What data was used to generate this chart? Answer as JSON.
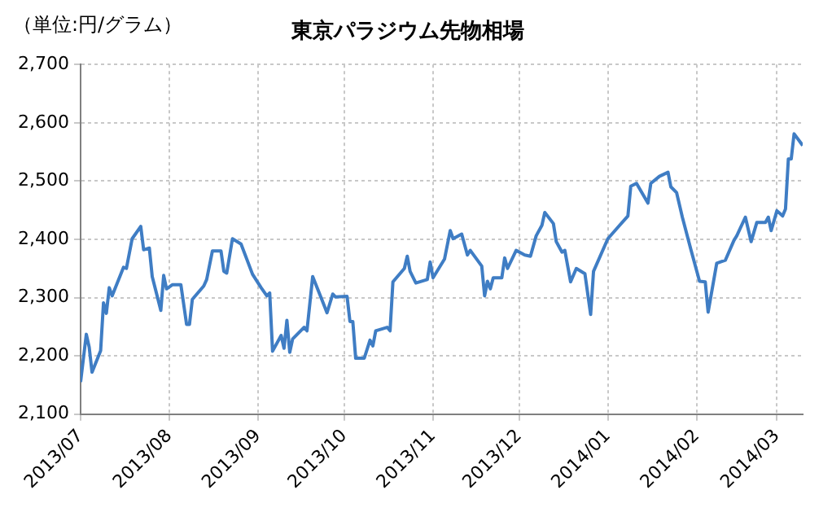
{
  "chart_data": {
    "type": "line",
    "title": "東京パラジウム先物相場",
    "ylabel": "（単位:円/グラム）",
    "x": [
      "2013-07-01",
      "2013-07-03",
      "2013-07-04",
      "2013-07-05",
      "2013-07-08",
      "2013-07-09",
      "2013-07-10",
      "2013-07-11",
      "2013-07-12",
      "2013-07-16",
      "2013-07-17",
      "2013-07-19",
      "2013-07-22",
      "2013-07-23",
      "2013-07-25",
      "2013-07-26",
      "2013-07-29",
      "2013-07-30",
      "2013-07-31",
      "2013-08-02",
      "2013-08-05",
      "2013-08-07",
      "2013-08-08",
      "2013-08-09",
      "2013-08-13",
      "2013-08-14",
      "2013-08-16",
      "2013-08-19",
      "2013-08-20",
      "2013-08-21",
      "2013-08-23",
      "2013-08-26",
      "2013-08-30",
      "2013-09-02",
      "2013-09-04",
      "2013-09-05",
      "2013-09-06",
      "2013-09-09",
      "2013-09-10",
      "2013-09-11",
      "2013-09-12",
      "2013-09-13",
      "2013-09-17",
      "2013-09-18",
      "2013-09-20",
      "2013-09-23",
      "2013-09-25",
      "2013-09-27",
      "2013-09-28",
      "2013-10-02",
      "2013-10-03",
      "2013-10-04",
      "2013-10-05",
      "2013-10-08",
      "2013-10-10",
      "2013-10-11",
      "2013-10-12",
      "2013-10-16",
      "2013-10-17",
      "2013-10-18",
      "2013-10-22",
      "2013-10-23",
      "2013-10-24",
      "2013-10-26",
      "2013-10-30",
      "2013-10-31",
      "2013-11-01",
      "2013-11-05",
      "2013-11-07",
      "2013-11-08",
      "2013-11-11",
      "2013-11-13",
      "2013-11-14",
      "2013-11-18",
      "2013-11-19",
      "2013-11-20",
      "2013-11-21",
      "2013-11-22",
      "2013-11-25",
      "2013-11-26",
      "2013-11-27",
      "2013-11-30",
      "2013-12-03",
      "2013-12-05",
      "2013-12-07",
      "2013-12-09",
      "2013-12-10",
      "2013-12-13",
      "2013-12-14",
      "2013-12-16",
      "2013-12-17",
      "2013-12-19",
      "2013-12-21",
      "2013-12-24",
      "2013-12-26",
      "2013-12-27",
      "2014-01-01",
      "2014-01-08",
      "2014-01-09",
      "2014-01-11",
      "2014-01-15",
      "2014-01-16",
      "2014-01-19",
      "2014-01-22",
      "2014-01-23",
      "2014-01-25",
      "2014-01-27",
      "2014-01-30",
      "2014-02-02",
      "2014-02-04",
      "2014-02-05",
      "2014-02-08",
      "2014-02-11",
      "2014-02-14",
      "2014-02-15",
      "2014-02-18",
      "2014-02-20",
      "2014-02-22",
      "2014-02-25",
      "2014-02-26",
      "2014-02-27",
      "2014-03-01",
      "2014-03-03",
      "2014-03-04",
      "2014-03-05",
      "2014-03-06",
      "2014-03-07",
      "2014-03-10"
    ],
    "series": [
      {
        "color": "#3f7dc4",
        "values": [
          2155,
          2237,
          2215,
          2172,
          2209,
          2291,
          2273,
          2317,
          2303,
          2352,
          2350,
          2401,
          2422,
          2382,
          2385,
          2336,
          2278,
          2338,
          2315,
          2322,
          2322,
          2254,
          2254,
          2297,
          2320,
          2331,
          2380,
          2380,
          2345,
          2342,
          2401,
          2392,
          2340,
          2317,
          2303,
          2308,
          2208,
          2235,
          2213,
          2261,
          2206,
          2229,
          2249,
          2243,
          2336,
          2299,
          2274,
          2306,
          2301,
          2302,
          2259,
          2259,
          2196,
          2196,
          2227,
          2217,
          2243,
          2249,
          2243,
          2327,
          2350,
          2371,
          2345,
          2325,
          2331,
          2361,
          2334,
          2366,
          2415,
          2401,
          2409,
          2373,
          2381,
          2354,
          2303,
          2328,
          2315,
          2334,
          2334,
          2368,
          2350,
          2381,
          2373,
          2371,
          2406,
          2424,
          2446,
          2427,
          2396,
          2378,
          2381,
          2327,
          2350,
          2341,
          2271,
          2345,
          2401,
          2440,
          2491,
          2496,
          2462,
          2496,
          2508,
          2515,
          2490,
          2480,
          2438,
          2382,
          2328,
          2327,
          2275,
          2359,
          2364,
          2398,
          2406,
          2438,
          2396,
          2429,
          2429,
          2438,
          2415,
          2449,
          2440,
          2452,
          2538,
          2538,
          2581,
          2561
        ]
      }
    ],
    "xlim": [
      "2013-07-01",
      "2014-03-10"
    ],
    "xticks": [
      {
        "value": "2013-07-01",
        "label": "2013/07"
      },
      {
        "value": "2013-08-01",
        "label": "2013/08"
      },
      {
        "value": "2013-09-01",
        "label": "2013/09"
      },
      {
        "value": "2013-10-01",
        "label": "2013/10"
      },
      {
        "value": "2013-11-01",
        "label": "2013/11"
      },
      {
        "value": "2013-12-01",
        "label": "2013/12"
      },
      {
        "value": "2014-01-01",
        "label": "2014/01"
      },
      {
        "value": "2014-02-01",
        "label": "2014/02"
      },
      {
        "value": "2014-03-01",
        "label": "2014/03"
      }
    ],
    "ylim": [
      2100,
      2700
    ],
    "yticks": [
      {
        "value": 2100,
        "label": "2,100"
      },
      {
        "value": 2200,
        "label": "2,200"
      },
      {
        "value": 2300,
        "label": "2,300"
      },
      {
        "value": 2400,
        "label": "2,400"
      },
      {
        "value": 2500,
        "label": "2,500"
      },
      {
        "value": 2600,
        "label": "2,600"
      },
      {
        "value": 2700,
        "label": "2,700"
      }
    ],
    "grid": true,
    "legend": false,
    "marker": "none",
    "line_style": "solid"
  }
}
